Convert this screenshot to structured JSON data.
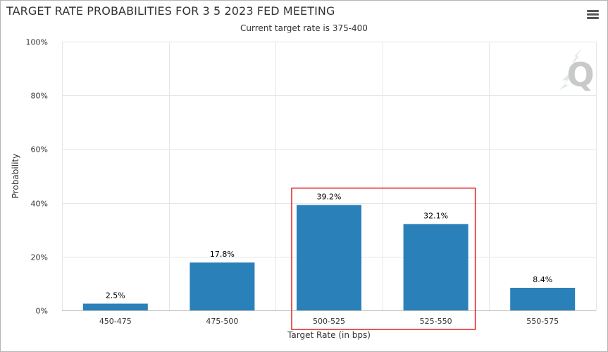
{
  "title": "TARGET RATE PROBABILITIES FOR 3 5 2023 FED MEETING",
  "subtitle": "Current target rate is 375-400",
  "menu_icon": "hamburger-menu-icon",
  "logo_icon": "cme-quikstrike-q-logo-icon",
  "colors": {
    "bar": "#2a80b9",
    "grid": "#e6e6e6",
    "axis": "#c0c0c0",
    "highlight_box": "#e02020",
    "text": "#333333"
  },
  "chart_data": {
    "type": "bar",
    "title": "TARGET RATE PROBABILITIES FOR 3 5 2023 FED MEETING",
    "subtitle": "Current target rate is 375-400",
    "xlabel": "Target Rate (in bps)",
    "ylabel": "Probability",
    "categories": [
      "450-475",
      "475-500",
      "500-525",
      "525-550",
      "550-575"
    ],
    "values": [
      2.5,
      17.8,
      39.2,
      32.1,
      8.4
    ],
    "data_labels": [
      "2.5%",
      "17.8%",
      "39.2%",
      "32.1%",
      "8.4%"
    ],
    "ylim": [
      0,
      100
    ],
    "y_ticks": [
      0,
      20,
      40,
      60,
      80,
      100
    ],
    "y_tick_labels": [
      "0%",
      "20%",
      "40%",
      "60%",
      "80%",
      "100%"
    ],
    "grid": true,
    "legend": "none",
    "highlighted_categories": [
      "500-525",
      "525-550"
    ]
  }
}
